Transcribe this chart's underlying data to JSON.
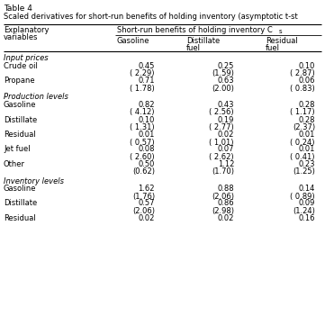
{
  "title_line1": "Table 4",
  "title_line2": "Scaled derivatives for short-run benefits of holding inventory (asymptotic t-st",
  "col_header_main": "Short-run benefits of holding inventory C",
  "col_header_sub": "s",
  "sections": [
    {
      "section_title": "Input prices",
      "rows": [
        {
          "label": "Crude oil",
          "vals": [
            "0.45",
            "0.25",
            "0.10"
          ],
          "tstats": [
            "( 2.29)",
            "(1.59)",
            "( 2.87)"
          ]
        },
        {
          "label": "Propane",
          "vals": [
            "0.71",
            "0.63",
            "0.06"
          ],
          "tstats": [
            "( 1.78)",
            "(2.00)",
            "( 0.83)"
          ]
        }
      ]
    },
    {
      "section_title": "Production levels",
      "rows": [
        {
          "label": "Gasoline",
          "vals": [
            "0.82",
            "0.43",
            "0.28"
          ],
          "tstats": [
            "( 4.12)",
            "( 2.56)",
            "( 1.17)"
          ]
        },
        {
          "label": "Distillate",
          "vals": [
            "0.10",
            "0.19",
            "0.28"
          ],
          "tstats": [
            "( 1.31)",
            "( 2.77)",
            "(2.37)"
          ]
        },
        {
          "label": "Residual",
          "vals": [
            "0.01",
            "0.02",
            "0.01"
          ],
          "tstats": [
            "( 0.57)",
            "( 1.01)",
            "( 0.24)"
          ]
        },
        {
          "label": "Jet fuel",
          "vals": [
            "0.08",
            "0.07",
            "0.01"
          ],
          "tstats": [
            "( 2.60)",
            "( 2.62)",
            "( 0.41)"
          ]
        },
        {
          "label": "Other",
          "vals": [
            "0.50",
            "1.12",
            "0.23"
          ],
          "tstats": [
            "(0.62)",
            "(1.70)",
            "(1.25)"
          ]
        }
      ]
    },
    {
      "section_title": "Inventory levels",
      "rows": [
        {
          "label": "Gasoline",
          "vals": [
            "1.62",
            "0.88",
            "0.14"
          ],
          "tstats": [
            "(1.76)",
            "(2.06)",
            "( 0.89)"
          ]
        },
        {
          "label": "Distillate",
          "vals": [
            "0.57",
            "0.86",
            "0.09"
          ],
          "tstats": [
            "(2.06)",
            "(2.98)",
            "(1.24)"
          ]
        },
        {
          "label": "Residual",
          "vals": [
            "0.02",
            "0.02",
            "0.16"
          ],
          "tstats": [
            "",
            "",
            ""
          ]
        }
      ]
    }
  ],
  "bg_color": "#ffffff",
  "text_color": "#000000",
  "font_size": 6.0,
  "title_font_size": 6.5
}
